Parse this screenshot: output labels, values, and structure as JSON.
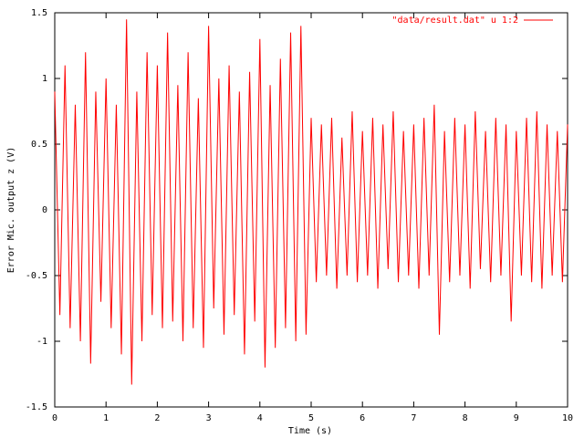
{
  "chart_data": {
    "type": "line",
    "x_label": "Time (s)",
    "y_label": "Error Mic. output z (V)",
    "xlim": [
      0,
      10
    ],
    "xticks": [
      0,
      1,
      2,
      3,
      4,
      5,
      6,
      7,
      8,
      9,
      10
    ],
    "ylim": [
      -1.5,
      1.5
    ],
    "yticks": [
      -1.5,
      -1,
      -0.5,
      0,
      0.5,
      1,
      1.5
    ],
    "legend": "top-right",
    "x": [
      0,
      0.1,
      0.2,
      0.3,
      0.4,
      0.5,
      0.6,
      0.7,
      0.8,
      0.9,
      1,
      1.1,
      1.2,
      1.3,
      1.4,
      1.5,
      1.6,
      1.7,
      1.8,
      1.9,
      2,
      2.1,
      2.2,
      2.3,
      2.4,
      2.5,
      2.6,
      2.7,
      2.8,
      2.9,
      3,
      3.1,
      3.2,
      3.3,
      3.4,
      3.5,
      3.6,
      3.7,
      3.8,
      3.9,
      4,
      4.1,
      4.2,
      4.3,
      4.4,
      4.5,
      4.6,
      4.7,
      4.8,
      4.9,
      5,
      5.1,
      5.2,
      5.3,
      5.4,
      5.5,
      5.6,
      5.7,
      5.8,
      5.9,
      6,
      6.1,
      6.2,
      6.3,
      6.4,
      6.5,
      6.6,
      6.7,
      6.8,
      6.9,
      7,
      7.1,
      7.2,
      7.3,
      7.4,
      7.5,
      7.6,
      7.7,
      7.8,
      7.9,
      8,
      8.1,
      8.2,
      8.3,
      8.4,
      8.5,
      8.6,
      8.7,
      8.8,
      8.9,
      9,
      9.1,
      9.2,
      9.3,
      9.4,
      9.5,
      9.6,
      9.7,
      9.8,
      9.9,
      10
    ],
    "series": [
      {
        "name": "\"data/result.dat\" u 1:2",
        "color": "#ff0000",
        "values": [
          0.9,
          -0.8,
          1.1,
          -0.9,
          0.8,
          -1.0,
          1.2,
          -1.17,
          0.9,
          -0.7,
          1.0,
          -0.9,
          0.8,
          -1.1,
          1.45,
          -1.33,
          0.9,
          -1.0,
          1.2,
          -0.8,
          1.1,
          -0.9,
          1.35,
          -0.85,
          0.95,
          -1.0,
          1.2,
          -0.9,
          0.85,
          -1.05,
          1.4,
          -0.75,
          1.0,
          -0.95,
          1.1,
          -0.8,
          0.9,
          -1.1,
          1.05,
          -0.85,
          1.3,
          -1.2,
          0.95,
          -1.05,
          1.15,
          -0.9,
          1.35,
          -1.0,
          1.4,
          -0.95,
          0.7,
          -0.55,
          0.65,
          -0.5,
          0.7,
          -0.6,
          0.55,
          -0.5,
          0.75,
          -0.55,
          0.6,
          -0.5,
          0.7,
          -0.6,
          0.65,
          -0.45,
          0.75,
          -0.55,
          0.6,
          -0.5,
          0.65,
          -0.6,
          0.7,
          -0.5,
          0.8,
          -0.95,
          0.6,
          -0.55,
          0.7,
          -0.5,
          0.65,
          -0.6,
          0.75,
          -0.45,
          0.6,
          -0.55,
          0.7,
          -0.5,
          0.65,
          -0.85,
          0.6,
          -0.5,
          0.7,
          -0.55,
          0.75,
          -0.6,
          0.65,
          -0.5,
          0.6,
          -0.55,
          0.65
        ]
      }
    ]
  }
}
